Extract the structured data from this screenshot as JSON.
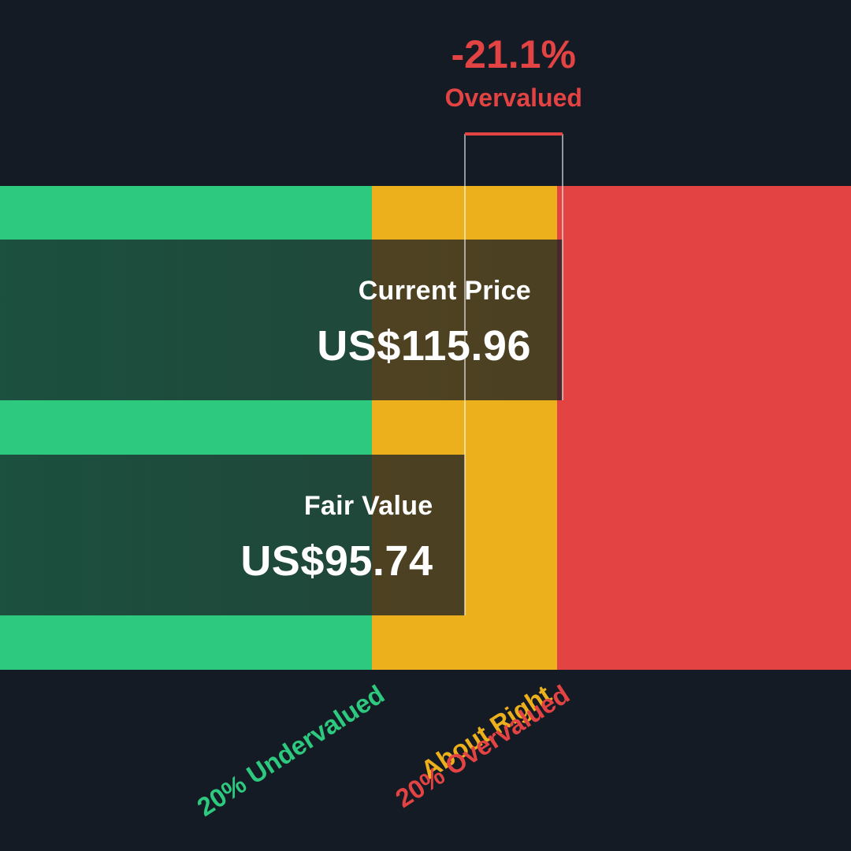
{
  "chart_data": {
    "type": "bar",
    "title": "",
    "categories": [
      "Current Price",
      "Fair Value"
    ],
    "values": [
      115.96,
      95.74
    ],
    "value_labels": [
      "US$115.96",
      "US$95.74"
    ],
    "currency": "US$",
    "zones": [
      {
        "label": "20% Undervalued",
        "from": 0,
        "to": 76.59,
        "color": "#2dc97e"
      },
      {
        "label": "About Right",
        "from": 76.59,
        "to": 114.89,
        "color": "#ecb01c"
      },
      {
        "label": "20% Overvalued",
        "from": 114.89,
        "to": 175.4,
        "color": "#e34343"
      }
    ],
    "difference": {
      "value": "-21.1%",
      "label": "Overvalued",
      "color": "#e34343"
    },
    "xlim": [
      0,
      175.4
    ],
    "grid": false,
    "legend": "none"
  }
}
